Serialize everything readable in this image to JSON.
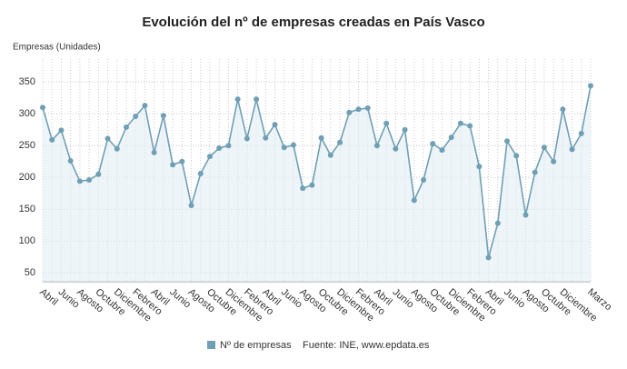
{
  "chart_data": {
    "type": "line",
    "title": "Evolución del nº de empresas creadas en País Vasco",
    "y_label": "Empresas (Unidades)",
    "source": "Fuente: INE, www.epdata.es",
    "categories": [
      "Abril",
      null,
      "Junio",
      null,
      "Agosto",
      null,
      "Octubre",
      null,
      "Diciembre",
      null,
      "Febrero",
      null,
      "Abril",
      null,
      "Junio",
      null,
      "Agosto",
      null,
      "Octubre",
      null,
      "Diciembre",
      null,
      "Febrero",
      null,
      "Abril",
      null,
      "Junio",
      null,
      "Agosto",
      null,
      "Octubre",
      null,
      "Diciembre",
      null,
      "Febrero",
      null,
      "Abril",
      null,
      "Junio",
      null,
      "Agosto",
      null,
      "Octubre",
      null,
      "Diciembre",
      null,
      "Febrero",
      null,
      "Abril",
      null,
      "Junio",
      null,
      "Agosto",
      null,
      "Octubre",
      null,
      "Diciembre",
      null,
      null,
      "Marzo"
    ],
    "series": [
      {
        "name": "Nº de empresas",
        "color": "#6f9fb5",
        "values": [
          310,
          259,
          274,
          226,
          194,
          196,
          205,
          261,
          245,
          279,
          296,
          313,
          239,
          297,
          220,
          225,
          156,
          206,
          233,
          246,
          250,
          323,
          261,
          323,
          262,
          283,
          247,
          251,
          183,
          188,
          262,
          235,
          255,
          302,
          307,
          309,
          250,
          285,
          245,
          275,
          164,
          196,
          253,
          243,
          263,
          285,
          281,
          217,
          74,
          128,
          257,
          234,
          141,
          208,
          247,
          225,
          307,
          244,
          269,
          344
        ]
      }
    ],
    "ylim": [
      36,
      386
    ],
    "yticks": [
      50,
      100,
      150,
      200,
      250,
      300,
      350
    ],
    "grid": true
  }
}
